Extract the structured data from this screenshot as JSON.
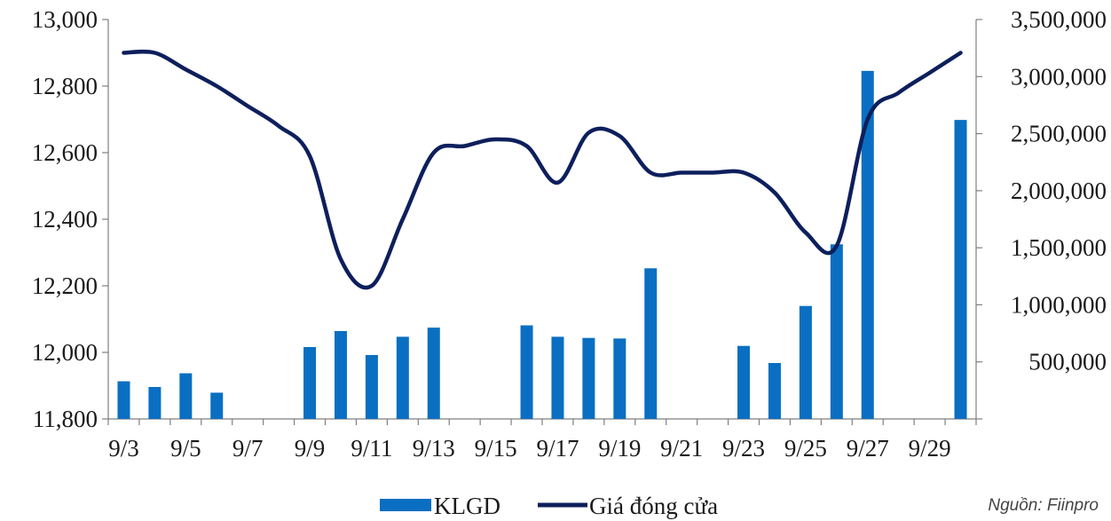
{
  "chart_data": {
    "type": "bar+line",
    "title": "",
    "x": [
      "9/3",
      "9/4",
      "9/5",
      "9/6",
      "9/7",
      "9/8",
      "9/9",
      "9/10",
      "9/11",
      "9/12",
      "9/13",
      "9/14",
      "9/15",
      "9/16",
      "9/17",
      "9/18",
      "9/19",
      "9/20",
      "9/21",
      "9/22",
      "9/23",
      "9/24",
      "9/25",
      "9/26",
      "9/27",
      "9/28",
      "9/29",
      "9/30"
    ],
    "x_tick_labels": [
      "9/3",
      "9/5",
      "9/7",
      "9/9",
      "9/11",
      "9/13",
      "9/15",
      "9/17",
      "9/19",
      "9/21",
      "9/23",
      "9/25",
      "9/27",
      "9/29"
    ],
    "left_axis": {
      "min": 11800,
      "max": 13000,
      "ticks": [
        "11,800",
        "12,000",
        "12,200",
        "12,400",
        "12,600",
        "12,800",
        "13,000"
      ]
    },
    "right_axis": {
      "min": 0,
      "max": 3500000,
      "ticks": [
        "500,000",
        "1,000,000",
        "1,500,000",
        "2,000,000",
        "2,500,000",
        "3,000,000",
        "3,500,000"
      ]
    },
    "series": [
      {
        "name": "KLGD",
        "type": "bar",
        "axis": "right",
        "color": "#0a6fc2",
        "values": [
          330000,
          280000,
          400000,
          230000,
          null,
          null,
          630000,
          770000,
          560000,
          720000,
          800000,
          null,
          null,
          820000,
          720000,
          710000,
          705000,
          1320000,
          null,
          null,
          640000,
          490000,
          990000,
          1530000,
          3050000,
          null,
          null,
          2620000
        ]
      },
      {
        "name": "Giá đóng cửa",
        "type": "line",
        "axis": "left",
        "color": "#0d1f5c",
        "values": [
          12900,
          12900,
          12850,
          12800,
          12740,
          12680,
          12590,
          12280,
          12200,
          12400,
          12600,
          12620,
          12640,
          12620,
          12510,
          12660,
          12650,
          12540,
          12540,
          12540,
          12540,
          12480,
          12360,
          12320,
          12700,
          12780,
          12840,
          12900
        ]
      }
    ],
    "legend": "bottom-center",
    "grid": false
  },
  "source_note": "Nguồn: Fiinpro"
}
